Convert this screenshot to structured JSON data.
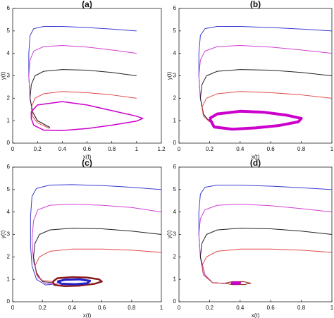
{
  "chart_data": [
    {
      "type": "line",
      "title": "(a)",
      "xlabel": "x(t)",
      "ylabel": "y(t)",
      "xlim": [
        0,
        1.2
      ],
      "ylim": [
        0,
        6
      ],
      "xticks": [
        0,
        0.2,
        0.4,
        0.6,
        0.8,
        1,
        1.2
      ],
      "yticks": [
        0,
        1,
        2,
        3,
        4,
        5,
        6
      ],
      "series": [
        {
          "color": "#3b3bd0",
          "width": 1,
          "x": [
            1,
            0.8,
            0.6,
            0.4,
            0.25,
            0.17,
            0.14,
            0.13,
            0.13,
            0.14,
            0.16,
            0.2,
            0.3
          ],
          "values": [
            5,
            5.08,
            5.15,
            5.2,
            5.2,
            5.1,
            4.8,
            4,
            3,
            2,
            1.4,
            1.0,
            0.7
          ]
        },
        {
          "color": "#d040d0",
          "width": 1,
          "x": [
            1,
            0.8,
            0.6,
            0.4,
            0.25,
            0.17,
            0.14,
            0.13,
            0.14,
            0.16,
            0.2,
            0.3
          ],
          "values": [
            4,
            4.15,
            4.28,
            4.35,
            4.3,
            4.1,
            3.7,
            3,
            2,
            1.4,
            1.0,
            0.7
          ]
        },
        {
          "color": "#222222",
          "width": 1,
          "x": [
            1,
            0.8,
            0.6,
            0.4,
            0.25,
            0.18,
            0.15,
            0.14,
            0.16,
            0.2,
            0.3
          ],
          "values": [
            3,
            3.15,
            3.25,
            3.28,
            3.2,
            3.0,
            2.6,
            2,
            1.4,
            1.0,
            0.7
          ]
        },
        {
          "color": "#e04848",
          "width": 1,
          "x": [
            1,
            0.8,
            0.6,
            0.4,
            0.25,
            0.18,
            0.15,
            0.16,
            0.2,
            0.3
          ],
          "values": [
            2,
            2.15,
            2.25,
            2.3,
            2.2,
            2.0,
            1.6,
            1.2,
            0.9,
            0.65
          ]
        },
        {
          "color": "#cc00cc",
          "width": 1.5,
          "x": [
            0.15,
            0.2,
            0.4,
            0.6,
            0.8,
            1.0,
            1.05,
            1.0,
            0.8,
            0.6,
            0.4,
            0.25,
            0.17,
            0.15,
            0.15
          ],
          "values": [
            1.4,
            1.7,
            1.85,
            1.7,
            1.45,
            1.2,
            1.1,
            0.98,
            0.8,
            0.65,
            0.56,
            0.58,
            0.8,
            1.1,
            1.4
          ]
        }
      ]
    },
    {
      "type": "line",
      "title": "(b)",
      "xlabel": "x(t)",
      "ylabel": "y(t)",
      "xlim": [
        0,
        1
      ],
      "ylim": [
        0,
        6
      ],
      "xticks": [
        0,
        0.2,
        0.4,
        0.6,
        0.8,
        1
      ],
      "yticks": [
        0,
        1,
        2,
        3,
        4,
        5,
        6
      ],
      "series": [
        {
          "color": "#3b3bd0",
          "width": 1,
          "x": [
            1,
            0.8,
            0.6,
            0.4,
            0.25,
            0.17,
            0.14,
            0.13,
            0.13,
            0.14,
            0.16,
            0.2
          ],
          "values": [
            5,
            5.08,
            5.15,
            5.2,
            5.2,
            5.1,
            4.8,
            4,
            3,
            2,
            1.3,
            0.95
          ]
        },
        {
          "color": "#d040d0",
          "width": 1,
          "x": [
            1,
            0.8,
            0.6,
            0.4,
            0.25,
            0.17,
            0.14,
            0.13,
            0.14,
            0.16,
            0.2
          ],
          "values": [
            4,
            4.15,
            4.28,
            4.35,
            4.3,
            4.1,
            3.7,
            3,
            2,
            1.3,
            0.95
          ]
        },
        {
          "color": "#222222",
          "width": 1,
          "x": [
            1,
            0.8,
            0.6,
            0.4,
            0.25,
            0.18,
            0.15,
            0.14,
            0.16,
            0.2
          ],
          "values": [
            3,
            3.15,
            3.25,
            3.28,
            3.2,
            3.0,
            2.6,
            2,
            1.3,
            0.95
          ]
        },
        {
          "color": "#e04848",
          "width": 1,
          "x": [
            1,
            0.8,
            0.6,
            0.4,
            0.25,
            0.18,
            0.15,
            0.16,
            0.2
          ],
          "values": [
            2,
            2.15,
            2.25,
            2.3,
            2.2,
            2.0,
            1.6,
            1.2,
            0.95
          ]
        },
        {
          "color": "#cc00cc",
          "width": 4,
          "x": [
            0.2,
            0.25,
            0.4,
            0.55,
            0.7,
            0.8,
            0.78,
            0.65,
            0.5,
            0.35,
            0.23,
            0.2
          ],
          "values": [
            1.1,
            1.3,
            1.42,
            1.38,
            1.25,
            1.1,
            0.95,
            0.78,
            0.68,
            0.62,
            0.72,
            1.1
          ]
        }
      ]
    },
    {
      "type": "line",
      "title": "(c)",
      "xlabel": "x(t)",
      "ylabel": "y(t)",
      "xlim": [
        0,
        1
      ],
      "ylim": [
        0,
        6
      ],
      "xticks": [
        0,
        0.2,
        0.4,
        0.6,
        0.8,
        1
      ],
      "yticks": [
        0,
        1,
        2,
        3,
        4,
        5,
        6
      ],
      "series": [
        {
          "color": "#3b3bd0",
          "width": 1,
          "x": [
            1,
            0.8,
            0.6,
            0.4,
            0.25,
            0.16,
            0.13,
            0.12,
            0.12,
            0.13,
            0.16,
            0.22,
            0.3
          ],
          "values": [
            5,
            5.1,
            5.18,
            5.22,
            5.2,
            5.05,
            4.7,
            3.8,
            2.5,
            1.6,
            1.0,
            0.75,
            0.8
          ]
        },
        {
          "color": "#d040d0",
          "width": 1,
          "x": [
            1,
            0.8,
            0.6,
            0.4,
            0.25,
            0.17,
            0.14,
            0.13,
            0.14,
            0.17,
            0.22,
            0.3
          ],
          "values": [
            4,
            4.2,
            4.3,
            4.35,
            4.3,
            4.1,
            3.6,
            2.8,
            1.8,
            1.1,
            0.8,
            0.8
          ]
        },
        {
          "color": "#222222",
          "width": 1,
          "x": [
            1,
            0.8,
            0.6,
            0.4,
            0.25,
            0.18,
            0.15,
            0.14,
            0.16,
            0.2,
            0.27
          ],
          "values": [
            3,
            3.15,
            3.25,
            3.28,
            3.2,
            3.0,
            2.6,
            2,
            1.3,
            0.9,
            0.85
          ]
        },
        {
          "color": "#e04848",
          "width": 1,
          "x": [
            1,
            0.8,
            0.6,
            0.4,
            0.25,
            0.18,
            0.15,
            0.16,
            0.2,
            0.27
          ],
          "values": [
            2.2,
            2.3,
            2.35,
            2.35,
            2.25,
            2.0,
            1.6,
            1.2,
            0.95,
            0.9
          ]
        },
        {
          "color": "#8b1a1a",
          "width": 2.5,
          "x": [
            0.27,
            0.3,
            0.4,
            0.5,
            0.58,
            0.6,
            0.55,
            0.45,
            0.35,
            0.28,
            0.27
          ],
          "values": [
            0.9,
            1.05,
            1.1,
            1.08,
            1.0,
            0.9,
            0.8,
            0.72,
            0.7,
            0.75,
            0.9
          ]
        },
        {
          "color": "#2020cc",
          "width": 3,
          "x": [
            0.3,
            0.35,
            0.45,
            0.52,
            0.5,
            0.42,
            0.33,
            0.3
          ],
          "values": [
            0.9,
            0.98,
            1.0,
            0.93,
            0.82,
            0.78,
            0.8,
            0.9
          ]
        }
      ]
    },
    {
      "type": "line",
      "title": "(d)",
      "xlabel": "x(t)",
      "ylabel": "y(t)",
      "xlim": [
        0,
        1
      ],
      "ylim": [
        0,
        6
      ],
      "xticks": [
        0,
        0.2,
        0.4,
        0.6,
        0.8,
        1
      ],
      "yticks": [
        0,
        1,
        2,
        3,
        4,
        5,
        6
      ],
      "series": [
        {
          "color": "#3b3bd0",
          "width": 1,
          "x": [
            1,
            0.8,
            0.6,
            0.4,
            0.25,
            0.17,
            0.14,
            0.13,
            0.13,
            0.14,
            0.17,
            0.22,
            0.3
          ],
          "values": [
            5,
            5.08,
            5.15,
            5.2,
            5.2,
            5.1,
            4.8,
            4,
            3,
            2,
            1.2,
            0.85,
            0.82
          ]
        },
        {
          "color": "#d040d0",
          "width": 1,
          "x": [
            1,
            0.8,
            0.6,
            0.4,
            0.25,
            0.17,
            0.14,
            0.13,
            0.14,
            0.17,
            0.22,
            0.3
          ],
          "values": [
            4,
            4.15,
            4.28,
            4.35,
            4.3,
            4.1,
            3.7,
            3,
            2,
            1.2,
            0.85,
            0.82
          ]
        },
        {
          "color": "#222222",
          "width": 1,
          "x": [
            1,
            0.8,
            0.6,
            0.4,
            0.25,
            0.18,
            0.15,
            0.14,
            0.16,
            0.22,
            0.3
          ],
          "values": [
            3,
            3.15,
            3.25,
            3.28,
            3.2,
            3.0,
            2.6,
            2,
            1.2,
            0.85,
            0.82
          ]
        },
        {
          "color": "#e04848",
          "width": 1,
          "x": [
            1,
            0.8,
            0.6,
            0.4,
            0.25,
            0.18,
            0.15,
            0.16,
            0.22,
            0.3
          ],
          "values": [
            2.2,
            2.3,
            2.35,
            2.35,
            2.25,
            2.0,
            1.6,
            1.2,
            0.85,
            0.82
          ]
        },
        {
          "color": "#8b1a1a",
          "width": 1,
          "x": [
            0.3,
            0.35,
            0.42,
            0.47,
            0.43,
            0.35,
            0.3
          ],
          "values": [
            0.83,
            0.9,
            0.9,
            0.83,
            0.77,
            0.76,
            0.83
          ]
        },
        {
          "color": "#cc00cc",
          "width": 3,
          "x": [
            0.34,
            0.37,
            0.4,
            0.38,
            0.34
          ],
          "values": [
            0.83,
            0.87,
            0.84,
            0.8,
            0.83
          ]
        }
      ]
    }
  ]
}
